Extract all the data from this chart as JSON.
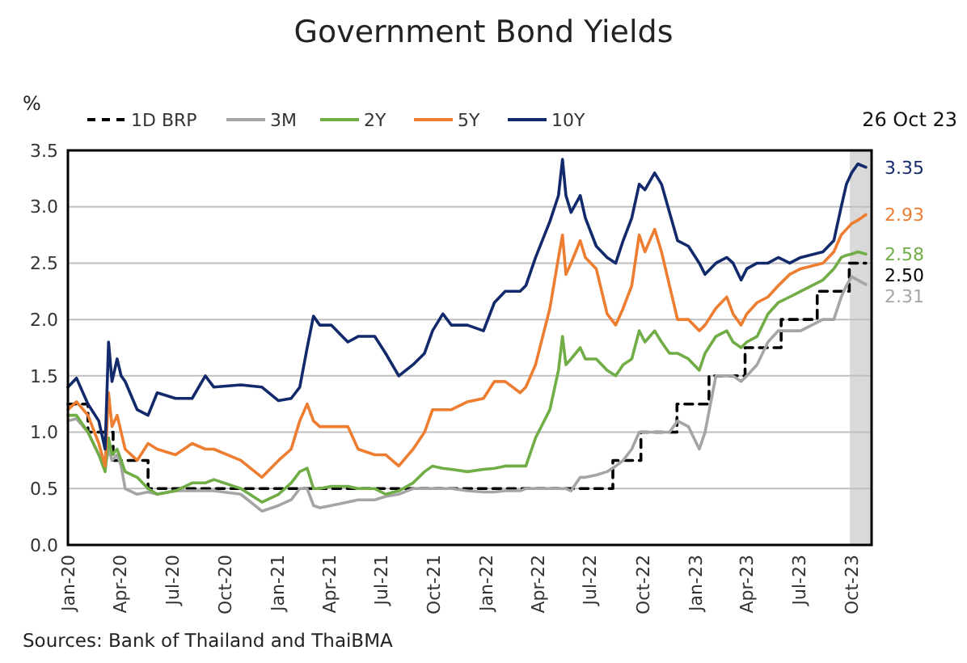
{
  "chart_data": {
    "type": "line",
    "title": "Government Bond Yields",
    "ylabel": "%",
    "x": [
      "2020-01-01",
      "2020-01-16",
      "2020-02-05",
      "2020-02-24",
      "2020-03-06",
      "2020-03-12",
      "2020-03-18",
      "2020-03-27",
      "2020-04-03",
      "2020-04-10",
      "2020-05-01",
      "2020-05-20",
      "2020-06-05",
      "2020-07-07",
      "2020-08-05",
      "2020-08-28",
      "2020-09-12",
      "2020-10-29",
      "2020-12-05",
      "2021-01-03",
      "2021-01-25",
      "2021-02-09",
      "2021-02-22",
      "2021-03-05",
      "2021-03-16",
      "2021-04-05",
      "2021-05-04",
      "2021-05-22",
      "2021-06-20",
      "2021-07-09",
      "2021-08-01",
      "2021-08-26",
      "2021-09-15",
      "2021-09-29",
      "2021-10-17",
      "2021-11-01",
      "2021-11-29",
      "2021-12-27",
      "2022-01-15",
      "2022-02-03",
      "2022-03-01",
      "2022-03-11",
      "2022-03-28",
      "2022-04-22",
      "2022-05-07",
      "2022-05-14",
      "2022-05-20",
      "2022-05-29",
      "2022-06-14",
      "2022-06-23",
      "2022-07-12",
      "2022-07-31",
      "2022-08-15",
      "2022-08-28",
      "2022-09-12",
      "2022-09-25",
      "2022-10-05",
      "2022-10-22",
      "2022-11-03",
      "2022-11-17",
      "2022-12-01",
      "2022-12-20",
      "2023-01-08",
      "2023-01-18",
      "2023-02-06",
      "2023-02-25",
      "2023-03-08",
      "2023-03-22",
      "2023-04-01",
      "2023-04-19",
      "2023-05-08",
      "2023-05-26",
      "2023-06-15",
      "2023-07-04",
      "2023-08-12",
      "2023-08-31",
      "2023-09-13",
      "2023-09-22",
      "2023-10-01",
      "2023-10-12",
      "2023-10-26"
    ],
    "series": [
      {
        "name": "1D BRP",
        "type": "step",
        "line_style": "dashed",
        "color": "#000000",
        "x": [
          "2020-01-01",
          "2020-02-05",
          "2020-03-20",
          "2020-05-20",
          "2022-08-10",
          "2022-09-28",
          "2022-11-30",
          "2023-01-25",
          "2023-03-29",
          "2023-05-31",
          "2023-08-02",
          "2023-09-27",
          "2023-10-26"
        ],
        "values": [
          1.25,
          1.0,
          0.75,
          0.5,
          0.75,
          1.0,
          1.25,
          1.5,
          1.75,
          2.0,
          2.25,
          2.5,
          2.5
        ]
      },
      {
        "name": "3M",
        "color": "#a5a5a5",
        "values": [
          1.1,
          1.12,
          1.0,
          0.8,
          0.7,
          0.85,
          0.75,
          0.8,
          0.7,
          0.5,
          0.45,
          0.47,
          0.45,
          0.48,
          0.48,
          0.48,
          0.48,
          0.45,
          0.3,
          0.35,
          0.4,
          0.5,
          0.5,
          0.35,
          0.33,
          0.35,
          0.38,
          0.4,
          0.4,
          0.43,
          0.45,
          0.5,
          0.5,
          0.5,
          0.5,
          0.5,
          0.48,
          0.47,
          0.47,
          0.48,
          0.48,
          0.5,
          0.5,
          0.5,
          0.5,
          0.5,
          0.5,
          0.48,
          0.6,
          0.6,
          0.62,
          0.65,
          0.7,
          0.75,
          0.85,
          1.0,
          1.0,
          1.0,
          1.0,
          1.0,
          1.1,
          1.05,
          0.85,
          1.0,
          1.5,
          1.5,
          1.5,
          1.45,
          1.5,
          1.6,
          1.8,
          1.9,
          1.9,
          1.9,
          2.0,
          2.0,
          2.2,
          2.3,
          2.38,
          2.35,
          2.31
        ]
      },
      {
        "name": "2Y",
        "color": "#70ad47",
        "values": [
          1.15,
          1.15,
          1.0,
          0.8,
          0.65,
          0.95,
          0.8,
          0.85,
          0.75,
          0.65,
          0.6,
          0.5,
          0.45,
          0.48,
          0.55,
          0.55,
          0.58,
          0.5,
          0.38,
          0.45,
          0.55,
          0.65,
          0.68,
          0.5,
          0.5,
          0.52,
          0.52,
          0.5,
          0.5,
          0.45,
          0.48,
          0.55,
          0.65,
          0.7,
          0.68,
          0.67,
          0.65,
          0.67,
          0.68,
          0.7,
          0.7,
          0.7,
          0.95,
          1.2,
          1.55,
          1.85,
          1.6,
          1.65,
          1.75,
          1.65,
          1.65,
          1.55,
          1.5,
          1.6,
          1.65,
          1.9,
          1.8,
          1.9,
          1.8,
          1.7,
          1.7,
          1.65,
          1.55,
          1.7,
          1.85,
          1.9,
          1.8,
          1.75,
          1.8,
          1.85,
          2.05,
          2.15,
          2.2,
          2.25,
          2.35,
          2.45,
          2.55,
          2.57,
          2.58,
          2.6,
          2.58
        ]
      },
      {
        "name": "5Y",
        "color": "#ed7d31",
        "values": [
          1.2,
          1.27,
          1.15,
          0.9,
          0.7,
          1.35,
          1.05,
          1.15,
          1.0,
          0.85,
          0.75,
          0.9,
          0.85,
          0.8,
          0.9,
          0.85,
          0.85,
          0.75,
          0.6,
          0.75,
          0.85,
          1.1,
          1.25,
          1.1,
          1.05,
          1.05,
          1.05,
          0.85,
          0.8,
          0.8,
          0.7,
          0.85,
          1.0,
          1.2,
          1.2,
          1.2,
          1.27,
          1.3,
          1.45,
          1.45,
          1.35,
          1.4,
          1.6,
          2.1,
          2.55,
          2.75,
          2.4,
          2.5,
          2.7,
          2.55,
          2.45,
          2.05,
          1.95,
          2.1,
          2.3,
          2.75,
          2.6,
          2.8,
          2.6,
          2.3,
          2.0,
          2.0,
          1.9,
          1.95,
          2.1,
          2.2,
          2.05,
          1.95,
          2.05,
          2.15,
          2.2,
          2.3,
          2.4,
          2.45,
          2.5,
          2.6,
          2.75,
          2.8,
          2.85,
          2.88,
          2.93
        ]
      },
      {
        "name": "10Y",
        "color": "#12296b",
        "values": [
          1.4,
          1.48,
          1.25,
          1.1,
          0.85,
          1.8,
          1.45,
          1.65,
          1.5,
          1.45,
          1.2,
          1.15,
          1.35,
          1.3,
          1.3,
          1.5,
          1.4,
          1.42,
          1.4,
          1.28,
          1.3,
          1.4,
          1.75,
          2.03,
          1.95,
          1.95,
          1.8,
          1.85,
          1.85,
          1.7,
          1.5,
          1.6,
          1.7,
          1.9,
          2.05,
          1.95,
          1.95,
          1.9,
          2.15,
          2.25,
          2.25,
          2.3,
          2.55,
          2.87,
          3.1,
          3.42,
          3.1,
          2.95,
          3.1,
          2.9,
          2.65,
          2.55,
          2.5,
          2.7,
          2.9,
          3.2,
          3.15,
          3.3,
          3.2,
          2.95,
          2.7,
          2.65,
          2.5,
          2.4,
          2.5,
          2.55,
          2.5,
          2.35,
          2.45,
          2.5,
          2.5,
          2.55,
          2.5,
          2.55,
          2.6,
          2.7,
          3.0,
          3.2,
          3.3,
          3.38,
          3.35
        ]
      }
    ],
    "xlim": [
      "2020-01-01",
      "2023-11-05"
    ],
    "xticks": [
      {
        "value": "2020-01",
        "label": "Jan-20"
      },
      {
        "value": "2020-04",
        "label": "Apr-20"
      },
      {
        "value": "2020-07",
        "label": "Jul-20"
      },
      {
        "value": "2020-10",
        "label": "Oct-20"
      },
      {
        "value": "2021-01",
        "label": "Jan-21"
      },
      {
        "value": "2021-04",
        "label": "Apr-21"
      },
      {
        "value": "2021-07",
        "label": "Jul-21"
      },
      {
        "value": "2021-10",
        "label": "Oct-21"
      },
      {
        "value": "2022-01",
        "label": "Jan-22"
      },
      {
        "value": "2022-04",
        "label": "Apr-22"
      },
      {
        "value": "2022-07",
        "label": "Jul-22"
      },
      {
        "value": "2022-10",
        "label": "Oct-22"
      },
      {
        "value": "2023-01",
        "label": "Jan-23"
      },
      {
        "value": "2023-04",
        "label": "Apr-23"
      },
      {
        "value": "2023-07",
        "label": "Jul-23"
      },
      {
        "value": "2023-10",
        "label": "Oct-23"
      }
    ],
    "ylim": [
      0,
      3.5
    ],
    "yticks": [
      {
        "value": 0,
        "label": "0.0"
      },
      {
        "value": 0.5,
        "label": "0.5"
      },
      {
        "value": 1,
        "label": "1.0"
      },
      {
        "value": 1.5,
        "label": "1.5"
      },
      {
        "value": 2,
        "label": "2.0"
      },
      {
        "value": 2.5,
        "label": "2.5"
      },
      {
        "value": 3,
        "label": "3.0"
      },
      {
        "value": 3.5,
        "label": "3.5"
      }
    ],
    "grid": "y",
    "legend": "top",
    "bands": [
      {
        "axis": "x",
        "from": "2023-09-28",
        "to": "2023-11-05",
        "color": "#d9d9d9"
      }
    ],
    "annotations": [
      "26 Oct 23",
      {
        "text": "3.35",
        "x": "2023-10-26",
        "y": 3.35
      },
      {
        "text": "2.93",
        "x": "2023-10-26",
        "y": 2.93
      },
      {
        "text": "2.58",
        "x": "2023-10-26",
        "y": 2.58
      },
      {
        "text": "2.31",
        "x": "2023-10-26",
        "y": 2.31
      },
      {
        "text": "2.50",
        "x": "2023-10-26",
        "y": 2.5
      },
      "Sources: Bank of Thailand and ThaiBMA"
    ]
  }
}
